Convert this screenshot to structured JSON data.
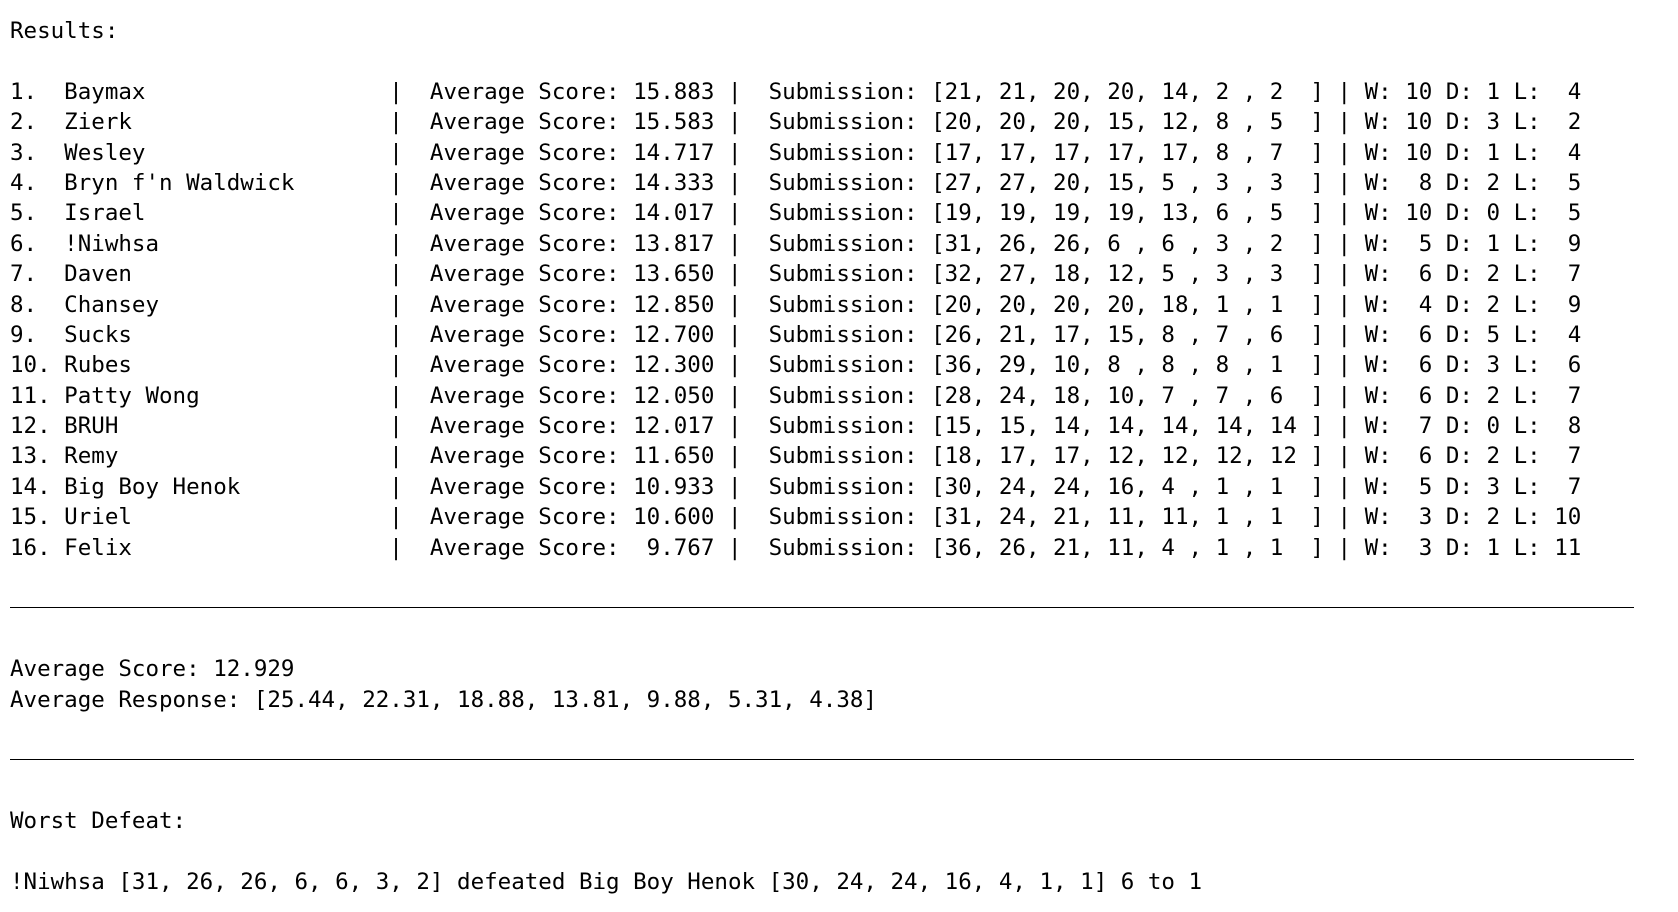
{
  "results_header": "Results:",
  "rows": [
    "1.  Baymax                  |  Average Score: 15.883 |  Submission: [21, 21, 20, 20, 14, 2 , 2  ] | W: 10 D: 1 L:  4",
    "2.  Zierk                   |  Average Score: 15.583 |  Submission: [20, 20, 20, 15, 12, 8 , 5  ] | W: 10 D: 3 L:  2",
    "3.  Wesley                  |  Average Score: 14.717 |  Submission: [17, 17, 17, 17, 17, 8 , 7  ] | W: 10 D: 1 L:  4",
    "4.  Bryn f'n Waldwick       |  Average Score: 14.333 |  Submission: [27, 27, 20, 15, 5 , 3 , 3  ] | W:  8 D: 2 L:  5",
    "5.  Israel                  |  Average Score: 14.017 |  Submission: [19, 19, 19, 19, 13, 6 , 5  ] | W: 10 D: 0 L:  5",
    "6.  !Niwhsa                 |  Average Score: 13.817 |  Submission: [31, 26, 26, 6 , 6 , 3 , 2  ] | W:  5 D: 1 L:  9",
    "7.  Daven                   |  Average Score: 13.650 |  Submission: [32, 27, 18, 12, 5 , 3 , 3  ] | W:  6 D: 2 L:  7",
    "8.  Chansey                 |  Average Score: 12.850 |  Submission: [20, 20, 20, 20, 18, 1 , 1  ] | W:  4 D: 2 L:  9",
    "9.  Sucks                   |  Average Score: 12.700 |  Submission: [26, 21, 17, 15, 8 , 7 , 6  ] | W:  6 D: 5 L:  4",
    "10. Rubes                   |  Average Score: 12.300 |  Submission: [36, 29, 10, 8 , 8 , 8 , 1  ] | W:  6 D: 3 L:  6",
    "11. Patty Wong              |  Average Score: 12.050 |  Submission: [28, 24, 18, 10, 7 , 7 , 6  ] | W:  6 D: 2 L:  7",
    "12. BRUH                    |  Average Score: 12.017 |  Submission: [15, 15, 14, 14, 14, 14, 14 ] | W:  7 D: 0 L:  8",
    "13. Remy                    |  Average Score: 11.650 |  Submission: [18, 17, 17, 12, 12, 12, 12 ] | W:  6 D: 2 L:  7",
    "14. Big Boy Henok           |  Average Score: 10.933 |  Submission: [30, 24, 24, 16, 4 , 1 , 1  ] | W:  5 D: 3 L:  7",
    "15. Uriel                   |  Average Score: 10.600 |  Submission: [31, 24, 21, 11, 11, 1 , 1  ] | W:  3 D: 2 L: 10",
    "16. Felix                   |  Average Score:  9.767 |  Submission: [36, 26, 21, 11, 4 , 1 , 1  ] | W:  3 D: 1 L: 11"
  ],
  "summary": {
    "average_score": "Average Score: 12.929",
    "average_response": "Average Response: [25.44, 22.31, 18.88, 13.81, 9.88, 5.31, 4.38]"
  },
  "worst_defeat": {
    "header": "Worst Defeat:",
    "text": "!Niwhsa [31, 26, 26, 6, 6, 3, 2] defeated Big Boy Henok [30, 24, 24, 16, 4, 1, 1] 6 to 1"
  }
}
